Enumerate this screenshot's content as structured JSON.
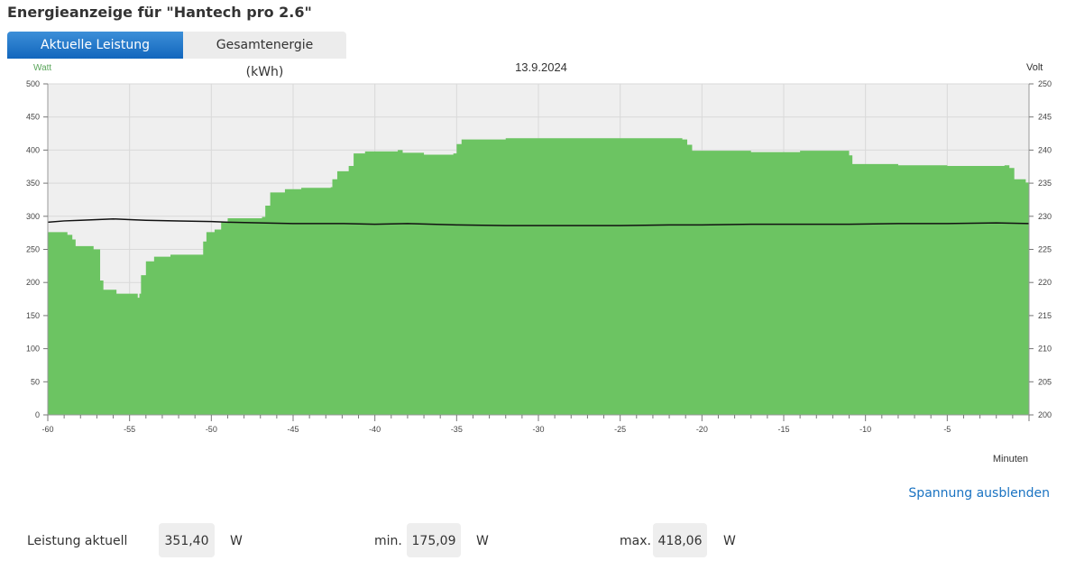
{
  "page": {
    "title": "Energieanzeige für \"Hantech pro 2.6\"",
    "tabs": [
      {
        "label": "Aktuelle Leistung (Watt)",
        "active": true
      },
      {
        "label": "Gesamtenergie (kWh)",
        "active": false
      }
    ],
    "hide_voltage_link": "Spannung ausblenden",
    "stats": {
      "current_label": "Leistung aktuell",
      "current_value": "351,40",
      "current_unit": "W",
      "min_label": "min.",
      "min_value": "175,09",
      "min_unit": "W",
      "max_label": "max.",
      "max_value": "418,06",
      "max_unit": "W"
    },
    "colors": {
      "accent": "#1266bd",
      "area_fill": "#6cc462",
      "plot_bg": "#efefef",
      "voltage_line": "#111111",
      "left_axis_label": "#5aa55a",
      "link": "#1a73c2"
    }
  },
  "chart_data": {
    "type": "area",
    "title": "13.9.2024",
    "xlabel": "Minuten",
    "ylabel_left": "Watt",
    "ylabel_right": "Volt",
    "xlim": [
      -60,
      0
    ],
    "ylim_left": [
      0,
      500
    ],
    "ylim_right": [
      200,
      250
    ],
    "x_ticks": [
      -60,
      -55,
      -50,
      -45,
      -40,
      -35,
      -30,
      -25,
      -20,
      -15,
      -10,
      -5
    ],
    "y_ticks_left": [
      0,
      50,
      100,
      150,
      200,
      250,
      300,
      350,
      400,
      450,
      500
    ],
    "y_ticks_right": [
      200,
      205,
      210,
      215,
      220,
      225,
      230,
      235,
      240,
      245,
      250
    ],
    "grid": true,
    "series": [
      {
        "axis": "left",
        "style": "step-area",
        "points": [
          [
            -60,
            276
          ],
          [
            -58.8,
            272
          ],
          [
            -58.5,
            265
          ],
          [
            -58.3,
            255
          ],
          [
            -57.2,
            250
          ],
          [
            -56.8,
            203
          ],
          [
            -56.6,
            189
          ],
          [
            -55.8,
            183
          ],
          [
            -54.5,
            177
          ],
          [
            -54.4,
            183
          ],
          [
            -54.3,
            211
          ],
          [
            -54.0,
            232
          ],
          [
            -53.5,
            239
          ],
          [
            -52.5,
            242
          ],
          [
            -50.6,
            242
          ],
          [
            -50.5,
            262
          ],
          [
            -50.3,
            276
          ],
          [
            -49.8,
            280
          ],
          [
            -49.4,
            292
          ],
          [
            -49.0,
            297
          ],
          [
            -46.9,
            299
          ],
          [
            -46.7,
            316
          ],
          [
            -46.4,
            336
          ],
          [
            -45.5,
            341
          ],
          [
            -44.5,
            343
          ],
          [
            -42.7,
            344
          ],
          [
            -42.6,
            356
          ],
          [
            -42.3,
            368
          ],
          [
            -41.6,
            376
          ],
          [
            -41.3,
            395
          ],
          [
            -40.6,
            398
          ],
          [
            -38.6,
            400
          ],
          [
            -38.3,
            396
          ],
          [
            -37.0,
            393
          ],
          [
            -35.2,
            395
          ],
          [
            -35.0,
            409
          ],
          [
            -34.7,
            416
          ],
          [
            -32.0,
            418
          ],
          [
            -28.0,
            418
          ],
          [
            -22.0,
            418
          ],
          [
            -21.2,
            416
          ],
          [
            -20.9,
            408
          ],
          [
            -20.6,
            399
          ],
          [
            -17.0,
            397
          ],
          [
            -14.0,
            399
          ],
          [
            -11.1,
            399
          ],
          [
            -11.0,
            392
          ],
          [
            -10.8,
            379
          ],
          [
            -8.0,
            377
          ],
          [
            -5.0,
            376
          ],
          [
            -1.5,
            377
          ],
          [
            -1.2,
            373
          ],
          [
            -0.9,
            356
          ],
          [
            -0.2,
            351
          ],
          [
            0,
            351
          ]
        ]
      },
      {
        "axis": "right",
        "style": "line",
        "points": [
          [
            -60,
            229.1
          ],
          [
            -59,
            229.3
          ],
          [
            -58,
            229.4
          ],
          [
            -57,
            229.5
          ],
          [
            -56,
            229.6
          ],
          [
            -55,
            229.5
          ],
          [
            -54,
            229.4
          ],
          [
            -52,
            229.3
          ],
          [
            -50,
            229.2
          ],
          [
            -49,
            229.1
          ],
          [
            -47,
            229.0
          ],
          [
            -45,
            228.9
          ],
          [
            -42,
            228.9
          ],
          [
            -40,
            228.8
          ],
          [
            -38,
            228.9
          ],
          [
            -35,
            228.7
          ],
          [
            -32,
            228.6
          ],
          [
            -29,
            228.6
          ],
          [
            -25,
            228.6
          ],
          [
            -22,
            228.7
          ],
          [
            -20,
            228.7
          ],
          [
            -17,
            228.8
          ],
          [
            -14,
            228.8
          ],
          [
            -11,
            228.8
          ],
          [
            -8,
            228.9
          ],
          [
            -5,
            228.9
          ],
          [
            -2,
            229.0
          ],
          [
            0,
            228.9
          ]
        ]
      }
    ]
  }
}
